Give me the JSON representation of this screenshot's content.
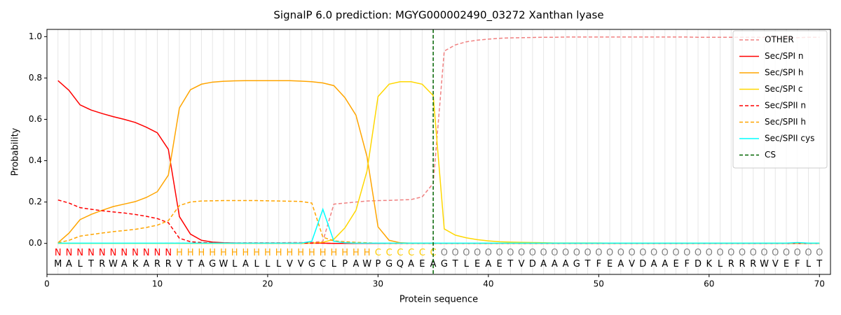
{
  "chart_data": {
    "type": "line",
    "title": "SignalP 6.0 prediction: MGYG000002490_03272 Xanthan lyase",
    "xlabel": "Protein sequence",
    "ylabel": "Probability",
    "xlim": [
      0,
      71
    ],
    "ylim": [
      -0.15,
      1.035
    ],
    "xticks": [
      0,
      10,
      20,
      30,
      40,
      50,
      60,
      70
    ],
    "yticks": [
      {
        "value": 0,
        "label": "0.0"
      },
      {
        "value": 0.2,
        "label": "0.2"
      },
      {
        "value": 0.4,
        "label": "0.4"
      },
      {
        "value": 0.6,
        "label": "0.6"
      },
      {
        "value": 0.8,
        "label": "0.8"
      },
      {
        "value": 1.0,
        "label": "1.0"
      }
    ],
    "grid": true,
    "legend": "upper right",
    "x": [
      1,
      2,
      3,
      4,
      5,
      6,
      7,
      8,
      9,
      10,
      11,
      12,
      13,
      14,
      15,
      16,
      17,
      18,
      19,
      20,
      21,
      22,
      23,
      24,
      25,
      26,
      27,
      28,
      29,
      30,
      31,
      32,
      33,
      34,
      35,
      36,
      37,
      38,
      39,
      40,
      41,
      42,
      43,
      44,
      45,
      46,
      47,
      48,
      49,
      50,
      51,
      52,
      53,
      54,
      55,
      56,
      57,
      58,
      59,
      60,
      61,
      62,
      63,
      64,
      65,
      66,
      67,
      68,
      69,
      70
    ],
    "sequence": [
      "M",
      "A",
      "L",
      "T",
      "R",
      "W",
      "A",
      "K",
      "A",
      "R",
      "R",
      "V",
      "T",
      "A",
      "G",
      "W",
      "L",
      "A",
      "L",
      "L",
      "L",
      "V",
      "V",
      "G",
      "C",
      "L",
      "P",
      "A",
      "W",
      "P",
      "G",
      "Q",
      "A",
      "E",
      "A",
      "G",
      "T",
      "L",
      "E",
      "A",
      "E",
      "T",
      "V",
      "D",
      "A",
      "A",
      "A",
      "G",
      "T",
      "F",
      "E",
      "A",
      "V",
      "D",
      "A",
      "A",
      "E",
      "F",
      "D",
      "K",
      "L",
      "R",
      "R",
      "R",
      "W",
      "V",
      "E",
      "F",
      "L",
      "T"
    ],
    "labels": [
      "N",
      "N",
      "N",
      "N",
      "N",
      "N",
      "N",
      "N",
      "N",
      "N",
      "N",
      "H",
      "H",
      "H",
      "H",
      "H",
      "H",
      "H",
      "H",
      "H",
      "H",
      "H",
      "H",
      "H",
      "H",
      "H",
      "H",
      "H",
      "H",
      "C",
      "C",
      "C",
      "C",
      "C",
      "C",
      "O",
      "O",
      "O",
      "O",
      "O",
      "O",
      "O",
      "O",
      "O",
      "O",
      "O",
      "O",
      "O",
      "O",
      "O",
      "O",
      "O",
      "O",
      "O",
      "O",
      "O",
      "O",
      "O",
      "O",
      "O",
      "O",
      "O",
      "O",
      "O",
      "O",
      "O",
      "O",
      "O",
      "O",
      "O"
    ],
    "label_colors": {
      "N": "#ff0000",
      "H": "#ffa500",
      "C": "#ffcc00",
      "O": "#808080"
    },
    "series": [
      {
        "name": "OTHER",
        "color": "#f08080",
        "dashed": true,
        "values": [
          0,
          0,
          0,
          0,
          0,
          0,
          0,
          0,
          0,
          0,
          0.001,
          0.001,
          0.001,
          0.002,
          0.002,
          0.002,
          0.002,
          0.003,
          0.003,
          0.003,
          0.003,
          0.004,
          0.004,
          0.005,
          0.01,
          0.19,
          0.195,
          0.2,
          0.205,
          0.207,
          0.208,
          0.21,
          0.212,
          0.225,
          0.29,
          0.93,
          0.96,
          0.975,
          0.983,
          0.988,
          0.992,
          0.994,
          0.995,
          0.996,
          0.997,
          0.997,
          0.998,
          0.998,
          0.998,
          0.998,
          0.998,
          0.998,
          0.998,
          0.998,
          0.998,
          0.998,
          0.998,
          0.998,
          0.997,
          0.997,
          0.997,
          0.997,
          0.997,
          0.997,
          0.997,
          0.997,
          0.997,
          0.995,
          0.997,
          0.997
        ]
      },
      {
        "name": "Sec/SPI n",
        "color": "#ff0000",
        "dashed": false,
        "values": [
          0.787,
          0.74,
          0.67,
          0.645,
          0.628,
          0.613,
          0.6,
          0.585,
          0.562,
          0.535,
          0.455,
          0.13,
          0.045,
          0.015,
          0.006,
          0.003,
          0.002,
          0.001,
          0.001,
          0.001,
          0.001,
          0.001,
          0.001,
          0.001,
          0.001,
          0,
          0,
          0,
          0,
          0,
          0,
          0,
          0,
          0,
          0,
          0,
          0,
          0,
          0,
          0,
          0,
          0,
          0,
          0,
          0,
          0,
          0,
          0,
          0,
          0,
          0,
          0,
          0,
          0,
          0,
          0,
          0,
          0,
          0,
          0,
          0,
          0,
          0,
          0,
          0,
          0,
          0,
          0,
          0,
          0
        ]
      },
      {
        "name": "Sec/SPI h",
        "color": "#ffa500",
        "dashed": false,
        "values": [
          0.003,
          0.05,
          0.115,
          0.14,
          0.16,
          0.178,
          0.19,
          0.202,
          0.222,
          0.25,
          0.33,
          0.655,
          0.743,
          0.77,
          0.78,
          0.784,
          0.786,
          0.787,
          0.787,
          0.787,
          0.787,
          0.787,
          0.785,
          0.782,
          0.776,
          0.763,
          0.705,
          0.62,
          0.42,
          0.08,
          0.015,
          0.003,
          0.001,
          0.001,
          0.001,
          0,
          0,
          0,
          0,
          0,
          0,
          0,
          0,
          0,
          0,
          0,
          0,
          0,
          0,
          0,
          0,
          0,
          0,
          0,
          0,
          0,
          0,
          0,
          0,
          0,
          0,
          0,
          0,
          0,
          0,
          0,
          0,
          0,
          0,
          0
        ]
      },
      {
        "name": "Sec/SPI c",
        "color": "#ffd700",
        "dashed": false,
        "values": [
          0,
          0,
          0,
          0,
          0,
          0,
          0,
          0,
          0,
          0,
          0,
          0,
          0,
          0,
          0,
          0,
          0,
          0,
          0,
          0,
          0,
          0,
          0,
          0.001,
          0.005,
          0.02,
          0.075,
          0.16,
          0.35,
          0.71,
          0.77,
          0.782,
          0.782,
          0.77,
          0.715,
          0.07,
          0.04,
          0.027,
          0.018,
          0.012,
          0.008,
          0.006,
          0.005,
          0.004,
          0.003,
          0.002,
          0.002,
          0.002,
          0.002,
          0.002,
          0.001,
          0.001,
          0.001,
          0.001,
          0.001,
          0.001,
          0.001,
          0.001,
          0.001,
          0.001,
          0.001,
          0.001,
          0.001,
          0.001,
          0.001,
          0.001,
          0.001,
          0.001,
          0.001,
          0.001
        ]
      },
      {
        "name": "Sec/SPII n",
        "color": "#ff0000",
        "dashed": true,
        "values": [
          0.21,
          0.195,
          0.173,
          0.165,
          0.158,
          0.152,
          0.147,
          0.14,
          0.131,
          0.12,
          0.1,
          0.025,
          0.008,
          0.004,
          0.002,
          0.002,
          0.001,
          0.001,
          0.001,
          0.001,
          0.001,
          0.001,
          0.001,
          0.001,
          0.001,
          0,
          0,
          0,
          0,
          0,
          0,
          0,
          0,
          0,
          0,
          0,
          0,
          0,
          0,
          0,
          0,
          0,
          0,
          0,
          0,
          0,
          0,
          0,
          0,
          0,
          0,
          0,
          0,
          0,
          0,
          0,
          0,
          0,
          0,
          0,
          0,
          0,
          0,
          0,
          0,
          0,
          0,
          0,
          0,
          0
        ]
      },
      {
        "name": "Sec/SPII h",
        "color": "#ffa500",
        "dashed": true,
        "values": [
          0.003,
          0.015,
          0.035,
          0.043,
          0.05,
          0.057,
          0.062,
          0.068,
          0.077,
          0.088,
          0.11,
          0.183,
          0.2,
          0.205,
          0.206,
          0.207,
          0.207,
          0.207,
          0.207,
          0.206,
          0.205,
          0.204,
          0.203,
          0.195,
          0.03,
          0.012,
          0.008,
          0.005,
          0.003,
          0.001,
          0,
          0,
          0,
          0,
          0,
          0,
          0,
          0,
          0,
          0,
          0,
          0,
          0,
          0,
          0,
          0,
          0,
          0,
          0,
          0,
          0,
          0,
          0,
          0,
          0,
          0,
          0,
          0,
          0,
          0,
          0,
          0,
          0,
          0,
          0,
          0,
          0,
          0,
          0,
          0
        ]
      },
      {
        "name": "Sec/SPII cys",
        "color": "#00ffff",
        "dashed": false,
        "values": [
          0.001,
          0.001,
          0.001,
          0.001,
          0.001,
          0.001,
          0.001,
          0.001,
          0.001,
          0.001,
          0.001,
          0.001,
          0.001,
          0.001,
          0.001,
          0.001,
          0.001,
          0.001,
          0.001,
          0.001,
          0.001,
          0.001,
          0.001,
          0.01,
          0.165,
          0.01,
          0.003,
          0.001,
          0.001,
          0.001,
          0.001,
          0.001,
          0.001,
          0.001,
          0.001,
          0.001,
          0.001,
          0.001,
          0.001,
          0.001,
          0.001,
          0.001,
          0.001,
          0.001,
          0.001,
          0.001,
          0.001,
          0.001,
          0.001,
          0.001,
          0.001,
          0.001,
          0.001,
          0.001,
          0.001,
          0.001,
          0.001,
          0.001,
          0.001,
          0.001,
          0.001,
          0.001,
          0.001,
          0.001,
          0.001,
          0.001,
          0.001,
          0.004,
          0.001,
          0.001
        ]
      }
    ],
    "cs": {
      "name": "CS",
      "position": 35,
      "color": "#006400"
    }
  }
}
